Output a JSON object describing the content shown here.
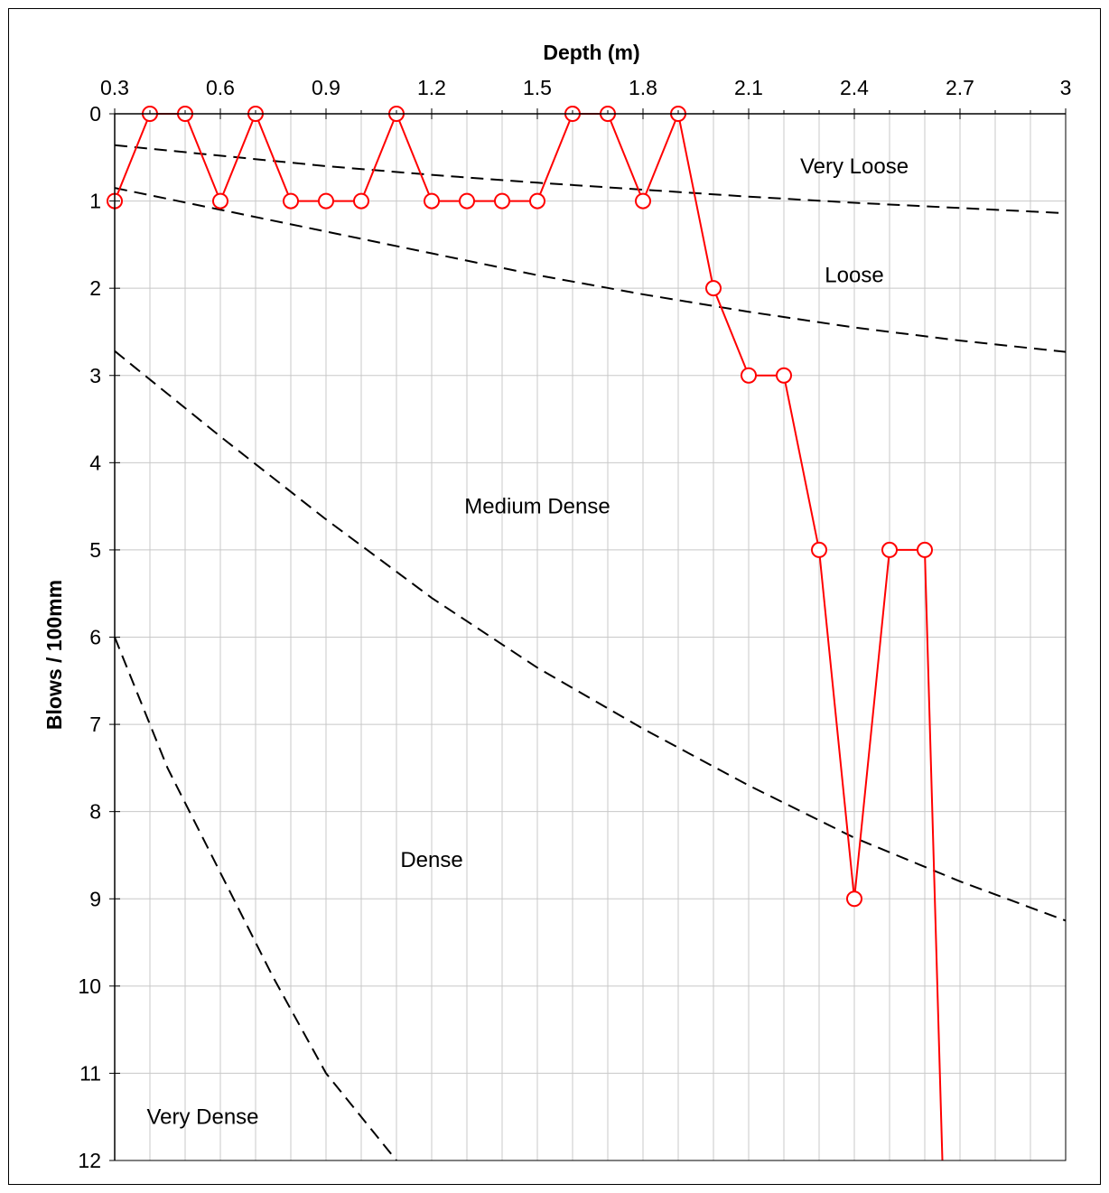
{
  "chart_data": {
    "type": "line",
    "title": "",
    "xlabel": "Depth (m)",
    "ylabel": "Blows / 100mm",
    "x_axis_position": "top",
    "y_axis_inverted": true,
    "xlim": [
      0.3,
      3.0
    ],
    "ylim": [
      0,
      12
    ],
    "x_ticks": [
      "0.3",
      "0.6",
      "0.9",
      "1.2",
      "1.5",
      "1.8",
      "2.1",
      "2.4",
      "2.7",
      "3"
    ],
    "y_ticks": [
      "0",
      "1",
      "2",
      "3",
      "4",
      "5",
      "6",
      "7",
      "8",
      "9",
      "10",
      "11",
      "12"
    ],
    "grid": true,
    "series": [
      {
        "color": "#ff0000",
        "marker": "open-circle",
        "x": [
          0.3,
          0.4,
          0.5,
          0.6,
          0.7,
          0.8,
          0.9,
          1.0,
          1.1,
          1.2,
          1.3,
          1.4,
          1.5,
          1.6,
          1.7,
          1.8,
          1.9,
          2.0,
          2.1,
          2.2,
          2.3,
          2.4,
          2.5,
          2.6,
          2.65
        ],
        "y": [
          1,
          0,
          0,
          1,
          0,
          1,
          1,
          1,
          0,
          1,
          1,
          1,
          1,
          0,
          0,
          1,
          0,
          2,
          3,
          3,
          5,
          9,
          5,
          5,
          12
        ],
        "marker_mask": [
          true,
          true,
          true,
          true,
          true,
          true,
          true,
          true,
          true,
          true,
          true,
          true,
          true,
          true,
          true,
          true,
          true,
          true,
          true,
          true,
          true,
          true,
          true,
          true,
          false
        ]
      }
    ],
    "boundaries": [
      {
        "color": "#000000",
        "style": "dashed",
        "x": [
          0.3,
          0.6,
          0.9,
          1.2,
          1.5,
          1.8,
          2.1,
          2.4,
          2.7,
          3.0
        ],
        "y": [
          0.36,
          0.48,
          0.6,
          0.7,
          0.79,
          0.87,
          0.95,
          1.02,
          1.08,
          1.14
        ]
      },
      {
        "color": "#000000",
        "style": "dashed",
        "x": [
          0.3,
          0.6,
          0.9,
          1.2,
          1.5,
          1.8,
          2.1,
          2.4,
          2.7,
          3.0
        ],
        "y": [
          0.85,
          1.1,
          1.35,
          1.6,
          1.85,
          2.07,
          2.27,
          2.45,
          2.6,
          2.73
        ]
      },
      {
        "color": "#000000",
        "style": "dashed",
        "x": [
          0.3,
          0.6,
          0.9,
          1.2,
          1.5,
          1.8,
          2.1,
          2.4,
          2.7,
          3.0
        ],
        "y": [
          2.72,
          3.7,
          4.65,
          5.55,
          6.35,
          7.05,
          7.7,
          8.3,
          8.8,
          9.25
        ]
      },
      {
        "color": "#000000",
        "style": "dashed",
        "x": [
          0.3,
          0.45,
          0.6,
          0.75,
          0.9,
          1.1
        ],
        "y": [
          6.0,
          7.5,
          8.7,
          9.9,
          11.0,
          12.0
        ]
      }
    ],
    "annotations": [
      {
        "text": "Very Loose",
        "x": 2.4,
        "y": 0.6
      },
      {
        "text": "Loose",
        "x": 2.4,
        "y": 1.85
      },
      {
        "text": "Medium Dense",
        "x": 1.5,
        "y": 4.5
      },
      {
        "text": "Dense",
        "x": 1.2,
        "y": 8.55
      },
      {
        "text": "Very Dense",
        "x": 0.55,
        "y": 11.5
      }
    ]
  }
}
